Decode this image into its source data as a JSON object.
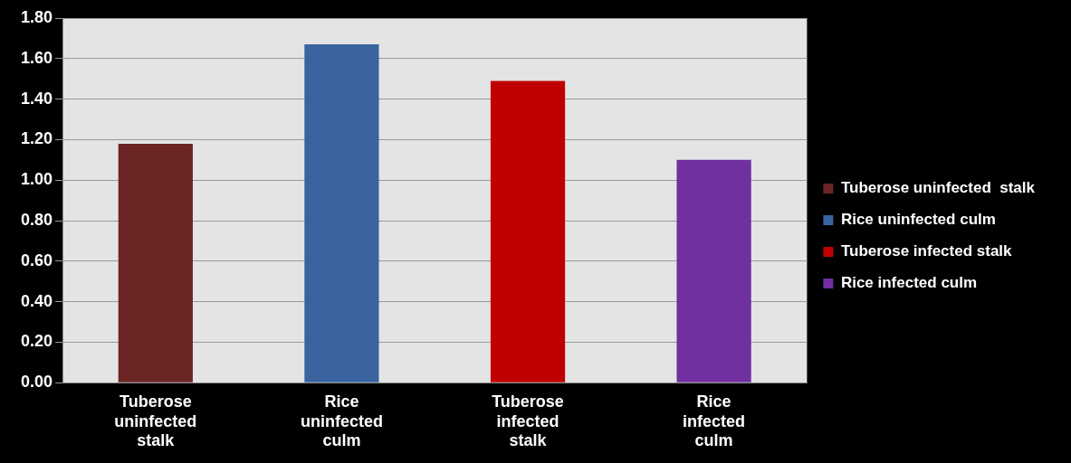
{
  "chart_data": {
    "type": "bar",
    "categories": [
      "Tuberose uninfected stalk",
      "Rice uninfected culm",
      "Tuberose infected stalk",
      "Rice infected culm"
    ],
    "series": [
      {
        "name": "Tuberose uninfected  stalk",
        "color": "#6b2525",
        "values": [
          1.18,
          null,
          null,
          null
        ]
      },
      {
        "name": "Rice uninfected culm",
        "color": "#3a64a0",
        "values": [
          null,
          1.67,
          null,
          null
        ]
      },
      {
        "name": "Tuberose infected stalk",
        "color": "#c00000",
        "values": [
          null,
          null,
          1.49,
          null
        ]
      },
      {
        "name": "Rice infected culm",
        "color": "#7030a0",
        "values": [
          null,
          null,
          null,
          1.1
        ]
      }
    ],
    "ylim": [
      0,
      1.8
    ],
    "yticks": [
      {
        "value": 0,
        "label": "0.00"
      },
      {
        "value": 0.2,
        "label": "0.20"
      },
      {
        "value": 0.4,
        "label": "0.40"
      },
      {
        "value": 0.6,
        "label": "0.60"
      },
      {
        "value": 0.8,
        "label": "0.80"
      },
      {
        "value": 1,
        "label": "1.00"
      },
      {
        "value": 1.2,
        "label": "1.20"
      },
      {
        "value": 1.4,
        "label": "1.40"
      },
      {
        "value": 1.6,
        "label": "1.60"
      },
      {
        "value": 1.8,
        "label": "1.80"
      }
    ],
    "grid": "y",
    "legend": "right"
  }
}
